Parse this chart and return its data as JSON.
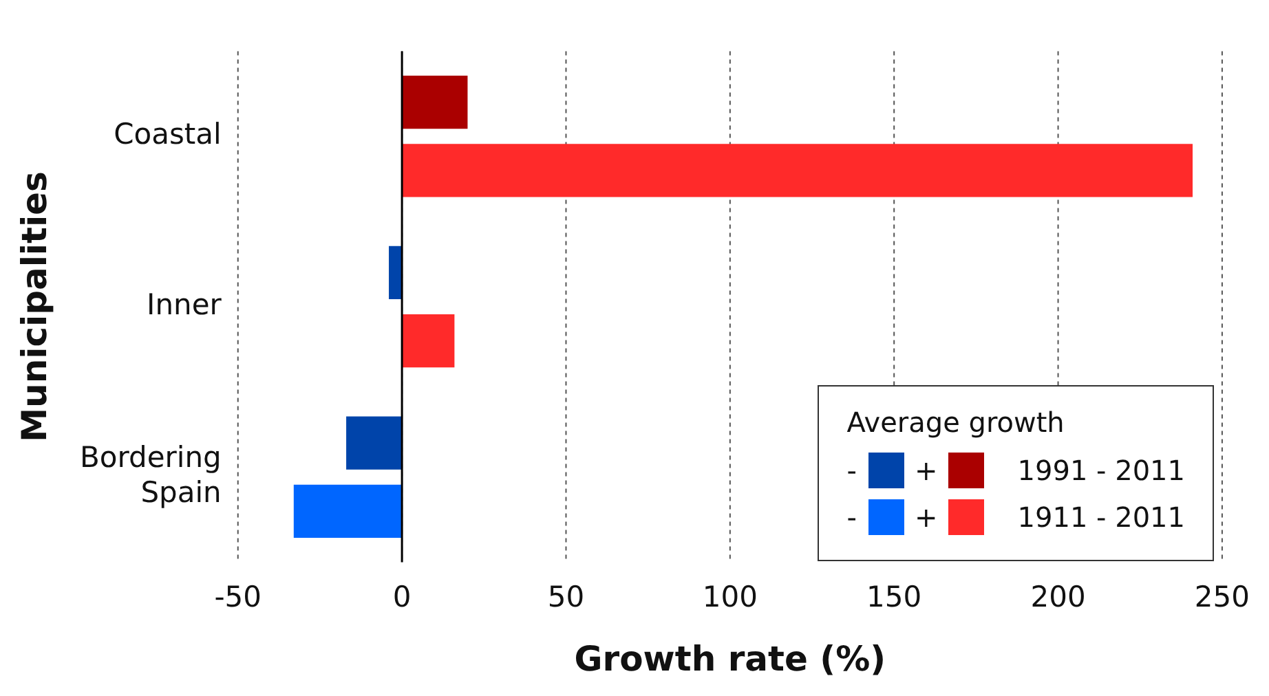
{
  "chart_data": {
    "type": "bar",
    "orientation": "horizontal",
    "xlabel": "Growth rate (%)",
    "ylabel": "Municipalities",
    "categories": [
      "Coastal",
      "Inner",
      "Bordering Spain"
    ],
    "series": [
      {
        "name": "1991 - 2011",
        "values": [
          20,
          -4,
          -17
        ],
        "colors": [
          "#aa0000",
          "#0044aa",
          "#0044aa"
        ]
      },
      {
        "name": "1911 - 2011",
        "values": [
          241,
          16,
          -33
        ],
        "colors": [
          "#ff2a2a",
          "#ff2a2a",
          "#0066ff"
        ]
      }
    ],
    "xlim": [
      -50,
      250
    ],
    "xticks": [
      -50,
      0,
      50,
      100,
      150,
      200,
      250
    ],
    "grid": "x",
    "legend": "bottom right",
    "legend_title": "Average growth",
    "annotations": [
      "-",
      "+"
    ]
  }
}
